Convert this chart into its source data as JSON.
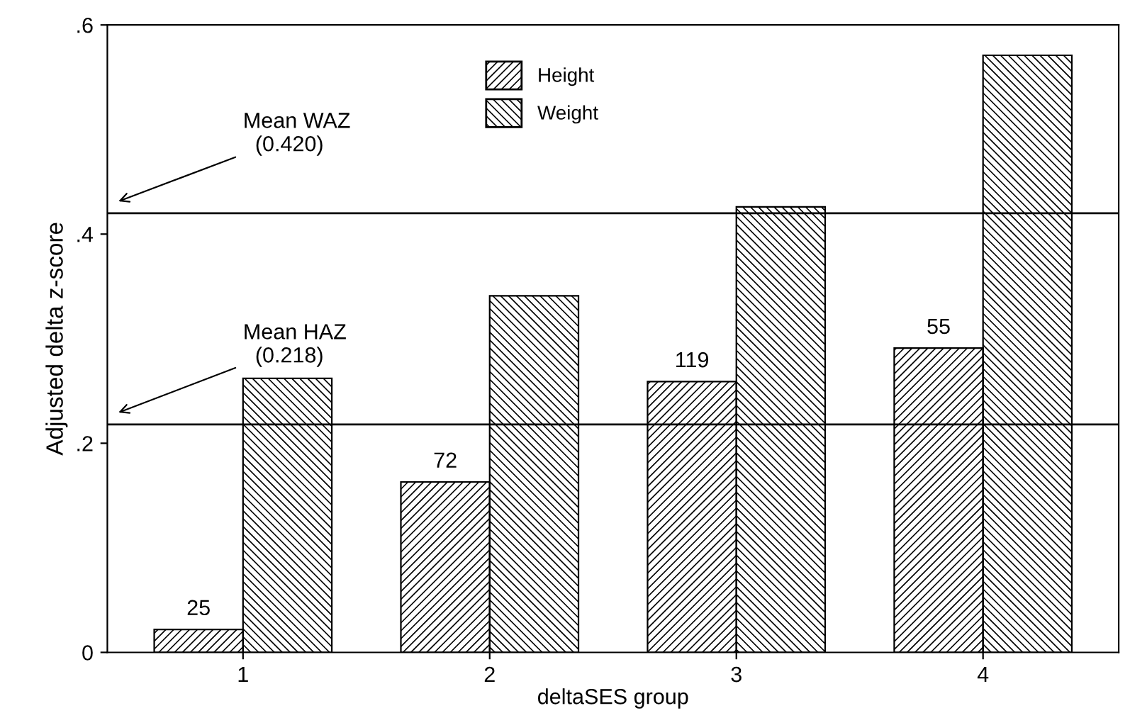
{
  "chart_data": {
    "type": "bar",
    "xlabel": "deltaSES group",
    "ylabel": "Adjusted delta z-score",
    "categories": [
      "1",
      "2",
      "3",
      "4"
    ],
    "series": [
      {
        "name": "Height",
        "color": "#000000",
        "values": [
          0.022,
          0.163,
          0.259,
          0.291
        ]
      },
      {
        "name": "Weight",
        "color": "#000000",
        "values": [
          0.262,
          0.341,
          0.426,
          0.571
        ]
      }
    ],
    "ylim": [
      0,
      0.6
    ],
    "yticks": [
      0,
      {
        "value": 0.2,
        "label": ".2"
      },
      {
        "value": 0.4,
        "label": ".4"
      },
      {
        "value": 0.6,
        "label": ".6"
      }
    ],
    "ref_lines": [
      {
        "axis": "y",
        "value": 0.42,
        "label": "Mean WAZ\n  (0.420)",
        "color": "#000000"
      },
      {
        "axis": "y",
        "value": 0.218,
        "label": "Mean HAZ\n  (0.218)",
        "color": "#000000"
      }
    ],
    "annotations": [
      {
        "text": "25",
        "x": "1",
        "y": 0.022
      },
      {
        "text": "72",
        "x": "2",
        "y": 0.163
      },
      {
        "text": "119",
        "x": "3",
        "y": 0.259
      },
      {
        "text": "55",
        "x": "4",
        "y": 0.291
      }
    ],
    "legend": "top",
    "grid": false
  }
}
